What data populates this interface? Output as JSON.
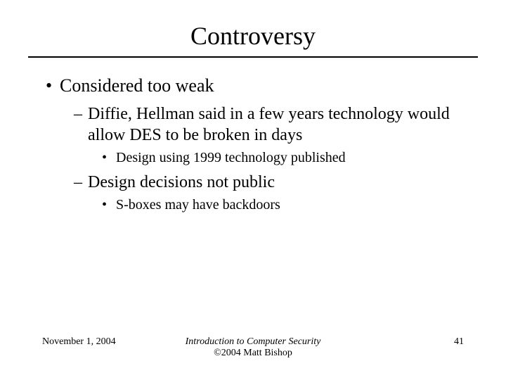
{
  "title": "Controversy",
  "bullets": {
    "l1_1": "Considered too weak",
    "l2_1": "Diffie, Hellman said in a few years technology would allow DES to be broken in days",
    "l3_1": "Design using 1999 technology published",
    "l2_2": "Design decisions not public",
    "l3_2": "S-boxes may have backdoors"
  },
  "footer": {
    "date": "November 1, 2004",
    "center_line1": "Introduction to Computer Security",
    "center_line2": "©2004 Matt Bishop",
    "page_number": "41"
  },
  "styling": {
    "background_color": "#ffffff",
    "text_color": "#000000",
    "font_family": "Times New Roman",
    "title_fontsize": 36,
    "level1_fontsize": 26,
    "level2_fontsize": 24,
    "level3_fontsize": 20,
    "footer_fontsize": 14,
    "underline_color": "#000000",
    "underline_width": 2
  }
}
